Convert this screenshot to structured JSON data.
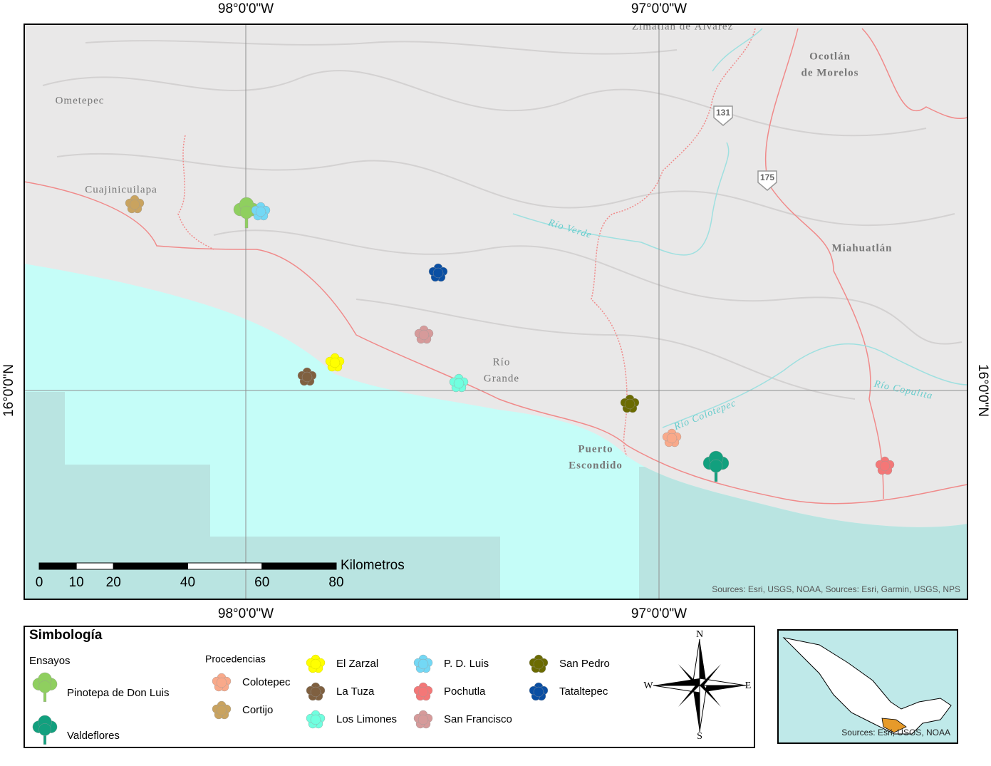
{
  "map": {
    "graticule": {
      "top": [
        "98°0'0\"W",
        "97°0'0\"W"
      ],
      "bottom": [
        "98°0'0\"W",
        "97°0'0\"W"
      ],
      "left": "16°0'0\"N",
      "right": "16°0'0\"N"
    },
    "places": [
      {
        "lines": [
          "Zimatlán de Álvarez"
        ]
      },
      {
        "lines": [
          "Ocotlán",
          "de Morelos"
        ]
      },
      {
        "lines": [
          "Ometepec"
        ]
      },
      {
        "lines": [
          "Cuajinicuilapa"
        ]
      },
      {
        "lines": [
          "Miahuatlán"
        ]
      },
      {
        "lines": [
          "Río",
          "Grande"
        ]
      },
      {
        "lines": [
          "Puerto",
          "Escondido"
        ]
      }
    ],
    "rivers": [
      "Río Verde",
      "Río Colotepec",
      "Río Copalita"
    ],
    "roads": [
      "131",
      "175"
    ],
    "sources": "Sources: Esri, USGS, NOAA, Sources: Esri, Garmin, USGS, NPS"
  },
  "scale_bar": {
    "unit": "Kilometros",
    "ticks": [
      0,
      10,
      20,
      40,
      60,
      80
    ]
  },
  "legend": {
    "title": "Simbología",
    "trials_title": "Ensayos",
    "trials": [
      {
        "name": "Pinotepa de Don Luis",
        "color": "#8fcf5f"
      },
      {
        "name": "Valdeflores",
        "color": "#12a07e"
      }
    ],
    "provenances_title": "Procedencias",
    "provenances": [
      {
        "name": "Colotepec",
        "color": "#f9a98a"
      },
      {
        "name": "Cortijo",
        "color": "#c9a35f"
      },
      {
        "name": "El Zarzal",
        "color": "#ffff00"
      },
      {
        "name": "La Tuza",
        "color": "#7f6040"
      },
      {
        "name": "Los Limones",
        "color": "#70ffdf"
      },
      {
        "name": "P. D. Luis",
        "color": "#73d8f5"
      },
      {
        "name": "Pochutla",
        "color": "#f47777"
      },
      {
        "name": "San Francisco",
        "color": "#d69a9a"
      },
      {
        "name": "San Pedro",
        "color": "#6b6b00"
      },
      {
        "name": "Tataltepec",
        "color": "#0a4fa3"
      }
    ]
  },
  "north_arrow": {
    "n": "N",
    "s": "S",
    "e": "E",
    "w": "W"
  },
  "inset": {
    "sources": "Sources: Esri, USGS, NOAA"
  }
}
